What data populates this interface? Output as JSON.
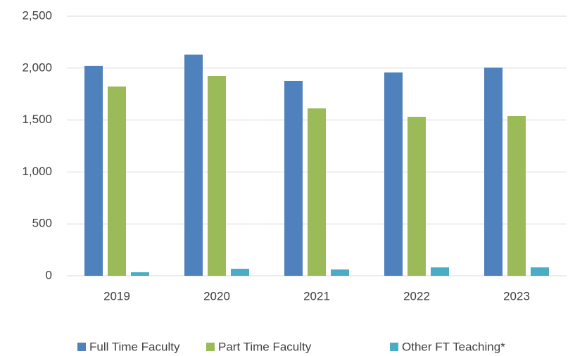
{
  "chart_data": {
    "type": "bar",
    "categories": [
      "2019",
      "2020",
      "2021",
      "2022",
      "2023"
    ],
    "series": [
      {
        "name": "Full Time Faculty",
        "color": "#4f81bd",
        "values": [
          2020,
          2130,
          1877,
          1958,
          2005
        ]
      },
      {
        "name": "Part Time Faculty",
        "color": "#9bbb59",
        "values": [
          1823,
          1924,
          1612,
          1531,
          1538
        ]
      },
      {
        "name": "Other FT Teaching*",
        "color": "#4bacc6",
        "values": [
          34,
          68,
          61,
          81,
          81
        ]
      }
    ],
    "ylim": [
      0,
      2500
    ],
    "yticks": [
      0,
      500,
      {
        "value": 1000,
        "label": "1,000"
      },
      {
        "value": 1500,
        "label": "1,500"
      },
      {
        "value": 2000,
        "label": "2,000"
      },
      {
        "value": 2500,
        "label": "2,500"
      }
    ],
    "grid": true,
    "legend": "bottom"
  }
}
